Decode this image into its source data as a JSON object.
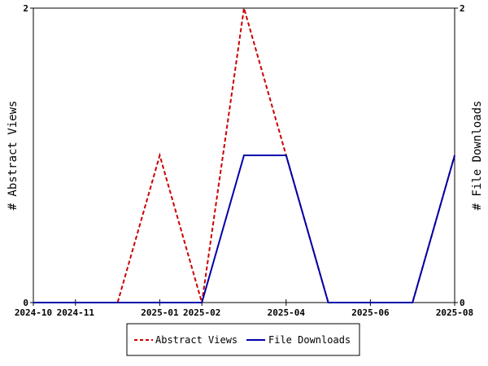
{
  "chart_data": {
    "type": "line",
    "x": [
      "2024-10",
      "2024-11",
      "2024-12",
      "2025-01",
      "2025-02",
      "2025-03",
      "2025-04",
      "2025-05",
      "2025-06",
      "2025-07",
      "2025-08"
    ],
    "x_tick_labels": [
      "2024-10",
      "2024-11",
      "2025-01",
      "2025-02",
      "2025-04",
      "2025-06",
      "2025-08"
    ],
    "x_tick_positions": [
      "2024-10",
      "2024-11",
      "2025-01",
      "2025-02",
      "2025-04",
      "2025-06",
      "2025-08"
    ],
    "series": [
      {
        "name": "Abstract Views",
        "values": [
          0,
          0,
          0,
          1,
          0,
          2,
          1,
          0,
          0,
          0,
          1
        ],
        "color": "#cc0000",
        "style": "dashed",
        "axis": "left"
      },
      {
        "name": "File Downloads",
        "values": [
          0,
          0,
          0,
          0,
          0,
          1,
          1,
          0,
          0,
          0,
          1
        ],
        "color": "#0000aa",
        "style": "solid",
        "axis": "right"
      }
    ],
    "ylabel_left": "# Abstract Views",
    "ylabel_right": "# File Downloads",
    "ylim_left": [
      0,
      2
    ],
    "ylim_right": [
      0,
      2
    ],
    "y_ticks_left": [
      "0",
      "2"
    ],
    "y_ticks_right": [
      "0",
      "2"
    ],
    "grid": false,
    "legend": "bottom-center"
  }
}
